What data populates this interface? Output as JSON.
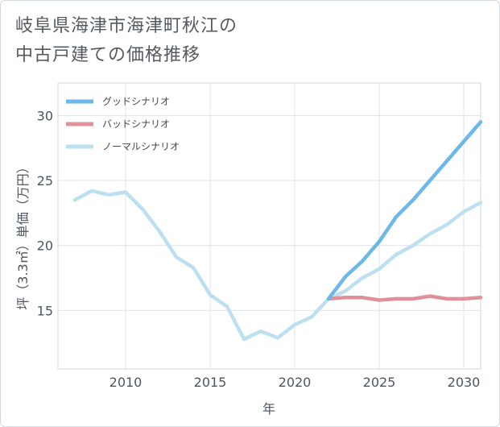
{
  "title_lines": [
    "岐阜県海津市海津町秋江の",
    "中古戸建ての価格推移"
  ],
  "chart_data": {
    "type": "line",
    "xlabel": "年",
    "ylabel": "坪（3.3㎡）単価（万円）",
    "xlim": [
      2006,
      2031
    ],
    "ylim": [
      10.5,
      32.5
    ],
    "xticks": [
      2010,
      2015,
      2020,
      2025,
      2030
    ],
    "yticks": [
      15,
      20,
      25,
      30
    ],
    "grid": true,
    "legend_position": "top-left",
    "series": [
      {
        "name": "グッドシナリオ",
        "color": "#6cb8e8",
        "x": [
          2022,
          2023,
          2024,
          2025,
          2026,
          2027,
          2028,
          2029,
          2030,
          2031
        ],
        "values": [
          15.9,
          17.6,
          18.8,
          20.3,
          22.2,
          23.5,
          25.0,
          26.5,
          28.0,
          29.5
        ]
      },
      {
        "name": "バッドシナリオ",
        "color": "#e0909a",
        "x": [
          2022,
          2023,
          2024,
          2025,
          2026,
          2027,
          2028,
          2029,
          2030,
          2031
        ],
        "values": [
          15.9,
          16.0,
          16.0,
          15.8,
          15.9,
          15.9,
          16.1,
          15.9,
          15.9,
          16.0
        ]
      },
      {
        "name": "ノーマルシナリオ",
        "color": "#bde0f0",
        "x": [
          2007,
          2008,
          2009,
          2010,
          2011,
          2012,
          2013,
          2014,
          2015,
          2016,
          2017,
          2018,
          2019,
          2020,
          2021,
          2022,
          2023,
          2024,
          2025,
          2026,
          2027,
          2028,
          2029,
          2030,
          2031
        ],
        "values": [
          23.5,
          24.2,
          23.9,
          24.1,
          22.8,
          21.1,
          19.1,
          18.3,
          16.2,
          15.3,
          12.8,
          13.4,
          12.9,
          13.9,
          14.5,
          15.9,
          16.5,
          17.5,
          18.2,
          19.3,
          20.0,
          20.9,
          21.6,
          22.6,
          23.3
        ]
      }
    ]
  }
}
